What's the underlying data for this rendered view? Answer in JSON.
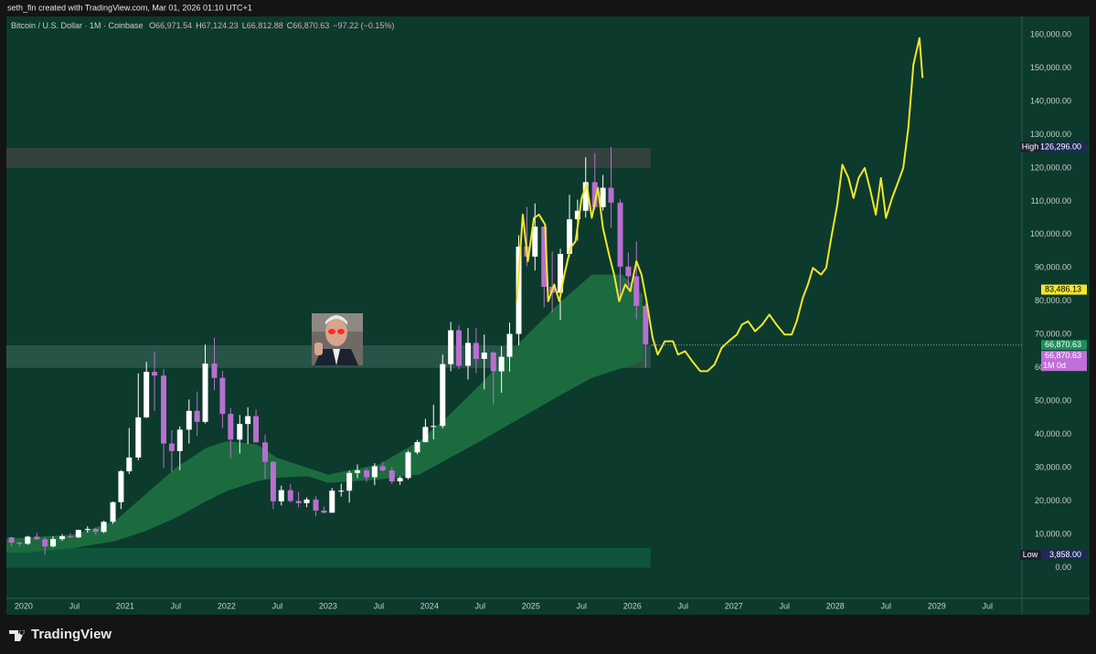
{
  "header": {
    "credit": "seth_fin created with TradingView.com, Mar 01, 2026 01:10 UTC+1",
    "brand": "TradingView"
  },
  "chart_data": {
    "type": "candlestick",
    "legend": {
      "symbol": "Bitcoin / U.S. Dollar · 1M · Coinbase",
      "fields": [
        {
          "key": "O",
          "value": "66,971.54"
        },
        {
          "key": "H",
          "value": "67,124.23"
        },
        {
          "key": "L",
          "value": "66,812.88"
        },
        {
          "key": "C",
          "value": "66,870.63"
        }
      ],
      "change": "−97.22 (−0.15%)"
    },
    "up_color": "#ffffff",
    "down_color": "#b86fd0",
    "x": [
      2019.88,
      2019.96,
      2020.04,
      2020.13,
      2020.21,
      2020.29,
      2020.38,
      2020.46,
      2020.54,
      2020.63,
      2020.71,
      2020.79,
      2020.88,
      2020.96,
      2021.04,
      2021.13,
      2021.21,
      2021.29,
      2021.38,
      2021.46,
      2021.54,
      2021.63,
      2021.71,
      2021.79,
      2021.88,
      2021.96,
      2022.04,
      2022.13,
      2022.21,
      2022.29,
      2022.38,
      2022.46,
      2022.54,
      2022.63,
      2022.71,
      2022.79,
      2022.88,
      2022.96,
      2023.04,
      2023.13,
      2023.21,
      2023.29,
      2023.38,
      2023.46,
      2023.54,
      2023.63,
      2023.71,
      2023.79,
      2023.88,
      2023.96,
      2024.04,
      2024.13,
      2024.21,
      2024.29,
      2024.38,
      2024.46,
      2024.54,
      2024.63,
      2024.71,
      2024.79,
      2024.88,
      2024.96,
      2025.04,
      2025.13,
      2025.21,
      2025.29,
      2025.38,
      2025.46,
      2025.54,
      2025.63,
      2025.71,
      2025.79,
      2025.88,
      2025.96,
      2026.04,
      2026.13,
      2026.21
    ],
    "open": [
      9150,
      7550,
      7200,
      9350,
      8550,
      6420,
      8630,
      9450,
      9140,
      11350,
      11660,
      10780,
      13800,
      19700,
      28990,
      33100,
      45150,
      58800,
      57700,
      37300,
      35040,
      41460,
      47100,
      43800,
      61300,
      57000,
      46200,
      38480,
      43160,
      45510,
      37640,
      31800,
      19940,
      23300,
      20050,
      19420,
      20490,
      17170,
      16540,
      23140,
      23150,
      28470,
      29250,
      27200,
      30470,
      29230,
      25940,
      26960,
      34650,
      37720,
      42280,
      42580,
      61130,
      71290,
      60640,
      67500,
      62700,
      64600,
      58970,
      63330,
      70200,
      96400,
      93400,
      102400,
      84350,
      82550,
      94200,
      104600,
      107150,
      115750,
      108250,
      114050,
      109600,
      90400,
      87500,
      78600,
      66971.54
    ],
    "high": [
      9190,
      7750,
      9600,
      10500,
      9200,
      9450,
      10080,
      10400,
      11450,
      12480,
      12100,
      14100,
      19900,
      29300,
      41950,
      58350,
      61800,
      64850,
      59600,
      41300,
      42450,
      50500,
      52900,
      67000,
      69000,
      59100,
      47990,
      45850,
      48200,
      47450,
      40000,
      31950,
      24650,
      25200,
      22800,
      21100,
      21450,
      18400,
      23950,
      25250,
      29200,
      31000,
      29800,
      31400,
      31800,
      30200,
      27500,
      35200,
      38400,
      44700,
      48950,
      64000,
      73800,
      72800,
      71950,
      72000,
      70000,
      65000,
      66500,
      73600,
      99800,
      108350,
      109350,
      102500,
      95000,
      95750,
      111950,
      110500,
      123200,
      124450,
      117900,
      126296,
      110600,
      94600,
      97900,
      79300,
      67124.23
    ],
    "low": [
      6520,
      6430,
      6900,
      8500,
      3858,
      6150,
      8100,
      8900,
      8950,
      10550,
      9900,
      10400,
      13200,
      17600,
      28150,
      32300,
      44950,
      47050,
      30000,
      28800,
      29300,
      37300,
      39600,
      43300,
      53300,
      42000,
      32900,
      34300,
      37150,
      37700,
      26700,
      17600,
      18750,
      19550,
      18150,
      18200,
      15480,
      16300,
      16500,
      21350,
      19550,
      26950,
      25800,
      24800,
      28900,
      25150,
      24900,
      26550,
      34100,
      37600,
      38550,
      41900,
      59000,
      59600,
      56500,
      58400,
      53500,
      49000,
      52550,
      58900,
      66800,
      90500,
      89200,
      78200,
      76600,
      74400,
      93350,
      98200,
      105100,
      107300,
      107250,
      102000,
      80600,
      84400,
      74600,
      60000,
      66812.88
    ],
    "close": [
      7550,
      7200,
      9350,
      8550,
      6420,
      8630,
      9450,
      9140,
      11350,
      11660,
      10780,
      13800,
      19700,
      28990,
      33100,
      45150,
      58800,
      57700,
      37300,
      35040,
      41460,
      47100,
      43800,
      61300,
      57000,
      46200,
      38480,
      43160,
      45510,
      37640,
      31800,
      19940,
      23300,
      20050,
      19420,
      20490,
      17170,
      16540,
      23140,
      23150,
      28470,
      29250,
      27200,
      30470,
      29230,
      25940,
      26960,
      34650,
      37720,
      42280,
      42580,
      61130,
      71290,
      60640,
      67500,
      62700,
      64600,
      58970,
      63330,
      70200,
      96400,
      93400,
      102400,
      84350,
      82550,
      94200,
      104600,
      107150,
      115750,
      108250,
      114050,
      109600,
      90400,
      87500,
      78600,
      66970,
      66870.63
    ],
    "lines": [
      {
        "color": "#f3e62c",
        "x": [
          2024.86,
          2024.92,
          2024.97,
          2025.03,
          2025.08,
          2025.14,
          2025.17,
          2025.23,
          2025.28,
          2025.33,
          2025.39,
          2025.44,
          2025.5,
          2025.55,
          2025.6,
          2025.66,
          2025.71,
          2025.77,
          2025.82,
          2025.87,
          2025.93,
          2025.98,
          2026.04,
          2026.09,
          2026.14,
          2026.2,
          2026.25,
          2026.32,
          2026.4,
          2026.45,
          2026.52,
          2026.59,
          2026.67,
          2026.74,
          2026.81,
          2026.88,
          2026.95,
          2027.03,
          2027.08,
          2027.14,
          2027.21,
          2027.28,
          2027.35,
          2027.42,
          2027.5,
          2027.57,
          2027.62,
          2027.68,
          2027.73,
          2027.78,
          2027.86,
          2027.91,
          2027.96,
          2028.02,
          2028.07,
          2028.13,
          2028.18,
          2028.23,
          2028.29,
          2028.34,
          2028.4,
          2028.45,
          2028.5,
          2028.56,
          2028.61,
          2028.67,
          2028.72,
          2028.77,
          2028.83,
          2028.86
        ],
        "values": [
          80000,
          106000,
          92000,
          105000,
          106000,
          103000,
          80000,
          85000,
          80000,
          88000,
          96000,
          98000,
          111000,
          115000,
          105000,
          114000,
          102000,
          94000,
          88000,
          80000,
          85000,
          83000,
          92000,
          88000,
          80000,
          69000,
          64000,
          68000,
          68000,
          64000,
          65000,
          62000,
          59000,
          59000,
          61000,
          66000,
          68000,
          70000,
          73000,
          74000,
          71000,
          73000,
          76000,
          73000,
          70000,
          70000,
          74000,
          81000,
          85000,
          90000,
          88000,
          90000,
          99000,
          109000,
          121000,
          117000,
          111000,
          117000,
          120000,
          114000,
          106000,
          117000,
          105000,
          111000,
          115000,
          120000,
          132000,
          151000,
          159000,
          147000
        ]
      }
    ],
    "band": {
      "color": "#1c6b3f",
      "x": [
        2019.83,
        2020.0,
        2020.5,
        2020.9,
        2021.2,
        2021.5,
        2021.8,
        2022.0,
        2022.3,
        2022.5,
        2022.8,
        2023.0,
        2023.5,
        2023.9,
        2024.2,
        2024.5,
        2024.9,
        2025.3,
        2025.6,
        2025.9,
        2026.1
      ],
      "upper": [
        8800,
        9000,
        10000,
        14000,
        22000,
        30000,
        36000,
        38000,
        37000,
        33000,
        30000,
        28000,
        31000,
        38000,
        46000,
        55000,
        68000,
        80000,
        88000,
        88000,
        82000
      ],
      "lower": [
        4700,
        4500,
        6000,
        8000,
        11000,
        15000,
        20000,
        23000,
        26000,
        27000,
        27500,
        25500,
        26500,
        28000,
        33000,
        38000,
        45000,
        52000,
        57000,
        60000,
        62000
      ]
    },
    "zones": [
      {
        "range": [
          120000,
          126000
        ],
        "xrange": [
          2019.83,
          2026.18
        ],
        "color": "#3c4441"
      },
      {
        "range": [
          60000,
          66800
        ],
        "xrange": [
          2019.83,
          2026.18
        ],
        "color": "#2b5a4c"
      },
      {
        "range": [
          0,
          6000
        ],
        "xrange": [
          2019.83,
          2026.18
        ],
        "color": "#0f5a40"
      }
    ],
    "xlim": [
      2019.83,
      2029.84
    ],
    "ylim": [
      -9150,
      165480
    ],
    "xticks": [
      2020,
      {
        "value": 2020.5,
        "label": "Jul"
      },
      2021,
      {
        "value": 2021.5,
        "label": "Jul"
      },
      2022,
      {
        "value": 2022.5,
        "label": "Jul"
      },
      2023,
      {
        "value": 2023.5,
        "label": "Jul"
      },
      2024,
      {
        "value": 2024.5,
        "label": "Jul"
      },
      2025,
      {
        "value": 2025.5,
        "label": "Jul"
      },
      2026,
      {
        "value": 2026.5,
        "label": "Jul"
      },
      2027,
      {
        "value": 2027.5,
        "label": "Jul"
      },
      2028,
      {
        "value": 2028.5,
        "label": "Jul"
      },
      2029,
      {
        "value": 2029.5,
        "label": "Jul"
      }
    ],
    "yticks": [
      {
        "value": 0,
        "label": "0.00"
      },
      {
        "value": 10000,
        "label": "10,000.00"
      },
      {
        "value": 20000,
        "label": "20,000.00"
      },
      {
        "value": 30000,
        "label": "30,000.00"
      },
      {
        "value": 40000,
        "label": "40,000.00"
      },
      {
        "value": 50000,
        "label": "50,000.00"
      },
      {
        "value": 60000,
        "label": "60,000.00"
      },
      {
        "value": 70000,
        "label": "70,000.00"
      },
      {
        "value": 80000,
        "label": "80,000.00"
      },
      {
        "value": 90000,
        "label": "90,000.00"
      },
      {
        "value": 100000,
        "label": "100,000.00"
      },
      {
        "value": 110000,
        "label": "110,000.00"
      },
      {
        "value": 120000,
        "label": "120,000.00"
      },
      {
        "value": 130000,
        "label": "130,000.00"
      },
      {
        "value": 140000,
        "label": "140,000.00"
      },
      {
        "value": 150000,
        "label": "150,000.00"
      },
      {
        "value": 160000,
        "label": "160,000.00"
      }
    ],
    "price_badges": [
      {
        "value": 126296,
        "label": "126,296.00",
        "tag": "High",
        "color": "#1c2a55",
        "text_color": "#ffffff"
      },
      {
        "value": 83486.13,
        "label": "83,486.13",
        "color": "#f3e62c",
        "text_color": "#000000"
      },
      {
        "value": 66870.63,
        "label": "66,870.63",
        "color": "#1f8f5c",
        "text_color": "#ffffff"
      },
      {
        "value": 66870.63,
        "label": "66,870.63",
        "sub": "1M 0d",
        "color": "#c06fd8",
        "text_color": "#ffffff"
      },
      {
        "value": 3858,
        "label": "3,858.00",
        "tag": "Low",
        "color": "#1c2a55",
        "text_color": "#ffffff"
      }
    ],
    "grid": false
  }
}
